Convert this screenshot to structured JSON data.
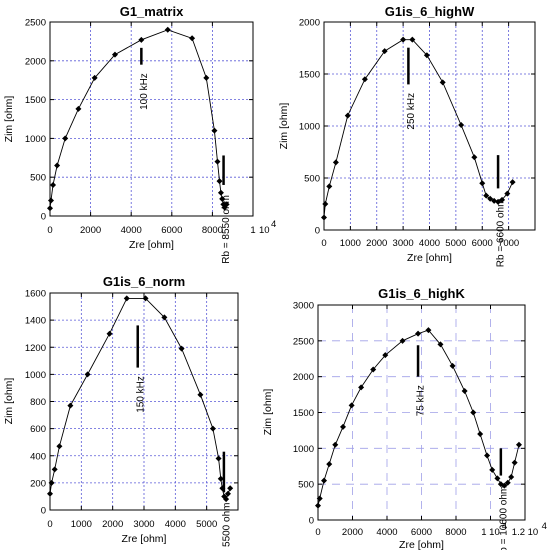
{
  "chart_data": [
    {
      "type": "scatter",
      "title": "G1_matrix",
      "xlabel": "Zre [ohm]",
      "ylabel": "Zim [ohm]",
      "xlim": [
        0,
        10000
      ],
      "ylim": [
        0,
        2500
      ],
      "x_ticks": [
        "0",
        "2000",
        "4000",
        "6000",
        "8000",
        "1"
      ],
      "x_exponent": "10",
      "x_exponent_power": "4",
      "y_ticks": [
        "0",
        "500",
        "1000",
        "1500",
        "2000",
        "2500"
      ],
      "grid": true,
      "series": [
        {
          "x": [
            0,
            50,
            150,
            350,
            750,
            1400,
            2200,
            3200,
            4500,
            5800,
            7000,
            7700,
            8100,
            8250,
            8350,
            8420,
            8480,
            8540,
            8600,
            8700
          ],
          "y": [
            100,
            200,
            400,
            650,
            1000,
            1380,
            1780,
            2080,
            2270,
            2400,
            2290,
            1780,
            1100,
            700,
            450,
            300,
            220,
            150,
            110,
            150
          ]
        }
      ],
      "annotations": [
        {
          "text": "100 kHz",
          "x": 4500,
          "y_top": 2270,
          "y_bottom": 1950
        },
        {
          "text": "Rb = 8550 ohm",
          "x": 8550,
          "y_top": 780,
          "y_bottom": 400
        }
      ]
    },
    {
      "type": "scatter",
      "title": "G1is_6_highW",
      "xlabel": "Zre [ohm]",
      "ylabel": "Zim [ohm]",
      "xlim": [
        0,
        8000
      ],
      "ylim": [
        0,
        2000
      ],
      "x_ticks": [
        "0",
        "1000",
        "2000",
        "3000",
        "4000",
        "5000",
        "6000",
        "7000"
      ],
      "y_ticks": [
        "0",
        "500",
        "1000",
        "1500",
        "2000"
      ],
      "grid": true,
      "series": [
        {
          "x": [
            0,
            50,
            200,
            450,
            900,
            1550,
            2300,
            3000,
            3350,
            3900,
            4500,
            5200,
            5700,
            6000,
            6150,
            6300,
            6450,
            6600,
            6750,
            6950,
            7150
          ],
          "y": [
            120,
            250,
            420,
            650,
            1100,
            1450,
            1720,
            1830,
            1830,
            1680,
            1420,
            1010,
            700,
            450,
            330,
            300,
            280,
            270,
            290,
            350,
            460
          ]
        }
      ],
      "annotations": [
        {
          "text": "250 kHz",
          "x": 3200,
          "y_top": 1830,
          "y_bottom": 1400
        },
        {
          "text": "Rb = 6600 ohm",
          "x": 6600,
          "y_top": 720,
          "y_bottom": 400
        }
      ]
    },
    {
      "type": "scatter",
      "title": "G1is_6_norm",
      "xlabel": "Zre [ohm]",
      "ylabel": "Zim [ohm]",
      "xlim": [
        0,
        6000
      ],
      "ylim": [
        0,
        1600
      ],
      "x_ticks": [
        "0",
        "1000",
        "2000",
        "3000",
        "4000",
        "5000"
      ],
      "y_ticks": [
        "0",
        "200",
        "400",
        "600",
        "800",
        "1000",
        "1200",
        "1400",
        "1600"
      ],
      "grid": true,
      "series": [
        {
          "x": [
            0,
            50,
            150,
            300,
            650,
            1200,
            1900,
            2450,
            3050,
            3650,
            4200,
            4800,
            5200,
            5380,
            5450,
            5500,
            5560,
            5620,
            5680,
            5750
          ],
          "y": [
            120,
            200,
            300,
            470,
            770,
            1000,
            1300,
            1560,
            1560,
            1420,
            1190,
            850,
            600,
            380,
            230,
            160,
            100,
            80,
            120,
            160
          ]
        }
      ],
      "annotations": [
        {
          "text": "150 kHz",
          "x": 2800,
          "y_top": 1420,
          "y_bottom": 1050
        },
        {
          "text": "Rb = 5500 ohm",
          "x": 5550,
          "y_top": 430,
          "y_bottom": 130
        }
      ]
    },
    {
      "type": "scatter",
      "title": "G1is_6_highK",
      "xlabel": "Zre [ohm]",
      "ylabel": "Zim [ohm]",
      "xlim": [
        0,
        12000
      ],
      "ylim": [
        0,
        3000
      ],
      "x_ticks": [
        "0",
        "2000",
        "4000",
        "6000",
        "8000",
        "1 10",
        "1.2 10"
      ],
      "x_exponent": "4",
      "y_ticks": [
        "0",
        "500",
        "1000",
        "1500",
        "2000",
        "2500",
        "3000"
      ],
      "grid": true,
      "series": [
        {
          "x": [
            0,
            100,
            350,
            650,
            1000,
            1450,
            1950,
            2500,
            3200,
            3900,
            4900,
            5800,
            6400,
            7100,
            7800,
            8500,
            9000,
            9400,
            9800,
            10100,
            10400,
            10600,
            10800,
            11000,
            11200,
            11400,
            11650
          ],
          "y": [
            200,
            300,
            550,
            780,
            1050,
            1300,
            1600,
            1850,
            2100,
            2300,
            2500,
            2600,
            2650,
            2450,
            2150,
            1800,
            1500,
            1200,
            900,
            700,
            580,
            500,
            480,
            520,
            600,
            800,
            1050
          ]
        }
      ],
      "annotations": [
        {
          "text": "75 kHz",
          "x": 5800,
          "y_top": 2550,
          "y_bottom": 2000
        },
        {
          "text": "Rb = 10600 ohm",
          "x": 10600,
          "y_top": 1000,
          "y_bottom": 620
        }
      ]
    }
  ]
}
